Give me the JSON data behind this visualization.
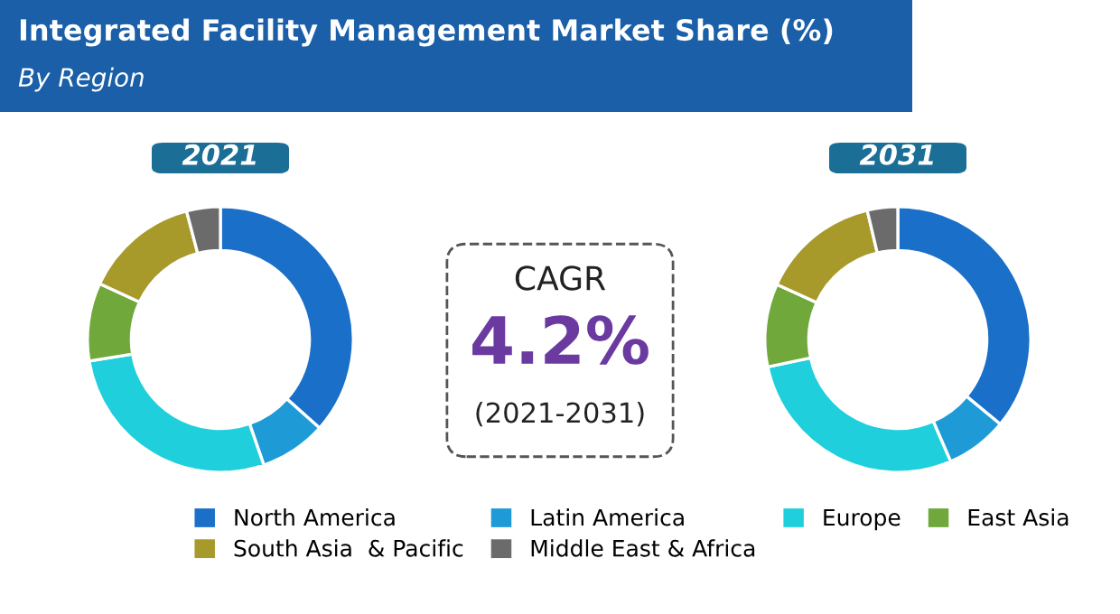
{
  "chart_data": [
    {
      "type": "donut",
      "title": "2021",
      "legend": "bottom",
      "categories": [
        "North America",
        "Latin America",
        "Europe",
        "East Asia",
        "South Asia  & Pacific",
        "Middle East & Africa"
      ],
      "values": [
        36.6,
        8.1,
        27.7,
        9.5,
        14.0,
        4.1
      ],
      "colors": [
        "#1a6fc9",
        "#1e9ad6",
        "#1fcfdc",
        "#70a83c",
        "#a89a2a",
        "#6b6b6b"
      ]
    },
    {
      "type": "other",
      "title": "Integrated Facility Management Market Share (%)",
      "subtitle": "By Region",
      "annotations": [
        "CAGR",
        "4.2%",
        "(2021-2031)"
      ]
    },
    {
      "type": "donut",
      "title": "2031",
      "categories": [
        null,
        null,
        null,
        null,
        null,
        null
      ],
      "values": [
        36.0,
        7.5,
        28.2,
        10.1,
        14.5,
        3.7
      ],
      "colors": [
        "#1a6fc9",
        "#1e9ad6",
        "#1fcfdc",
        "#70a83c",
        "#a89a2a",
        "#6b6b6b"
      ]
    }
  ]
}
